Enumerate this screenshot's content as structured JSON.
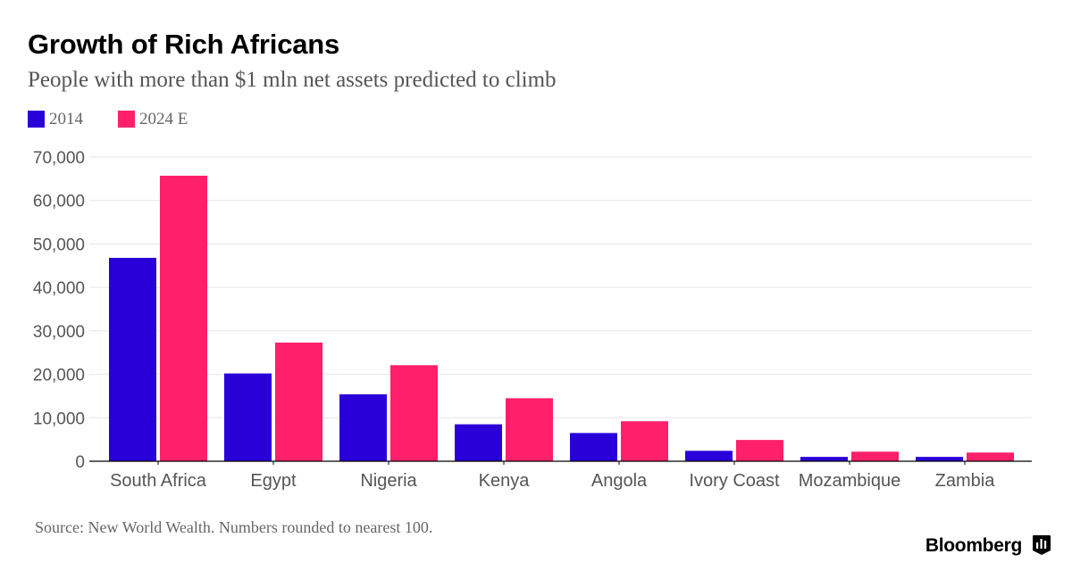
{
  "title": "Growth of Rich Africans",
  "subtitle": "People with more than $1 mln net assets predicted to climb",
  "legend": [
    {
      "label": "2014",
      "color": "#2a00d8"
    },
    {
      "label": "2024 E",
      "color": "#ff1f6b"
    }
  ],
  "source": "Source: New World Wealth. Numbers rounded to nearest 100.",
  "brand": "Bloomberg",
  "brand_icon": "bloomberg-terminal-icon",
  "chart_data": {
    "type": "bar",
    "categories": [
      "South Africa",
      "Egypt",
      "Nigeria",
      "Kenya",
      "Angola",
      "Ivory Coast",
      "Mozambique",
      "Zambia"
    ],
    "series": [
      {
        "name": "2014",
        "color": "#2a00d8",
        "values": [
          46800,
          20200,
          15400,
          8500,
          6500,
          2400,
          1000,
          1000
        ]
      },
      {
        "name": "2024 E",
        "color": "#ff1f6b",
        "values": [
          65700,
          27300,
          22100,
          14500,
          9200,
          4900,
          2200,
          2000
        ]
      }
    ],
    "yticks": [
      "0",
      "10,000",
      "20,000",
      "30,000",
      "40,000",
      "50,000",
      "60,000",
      "70,000"
    ],
    "ylim": [
      0,
      70000
    ],
    "grid": true,
    "legend_position": "top-left"
  }
}
